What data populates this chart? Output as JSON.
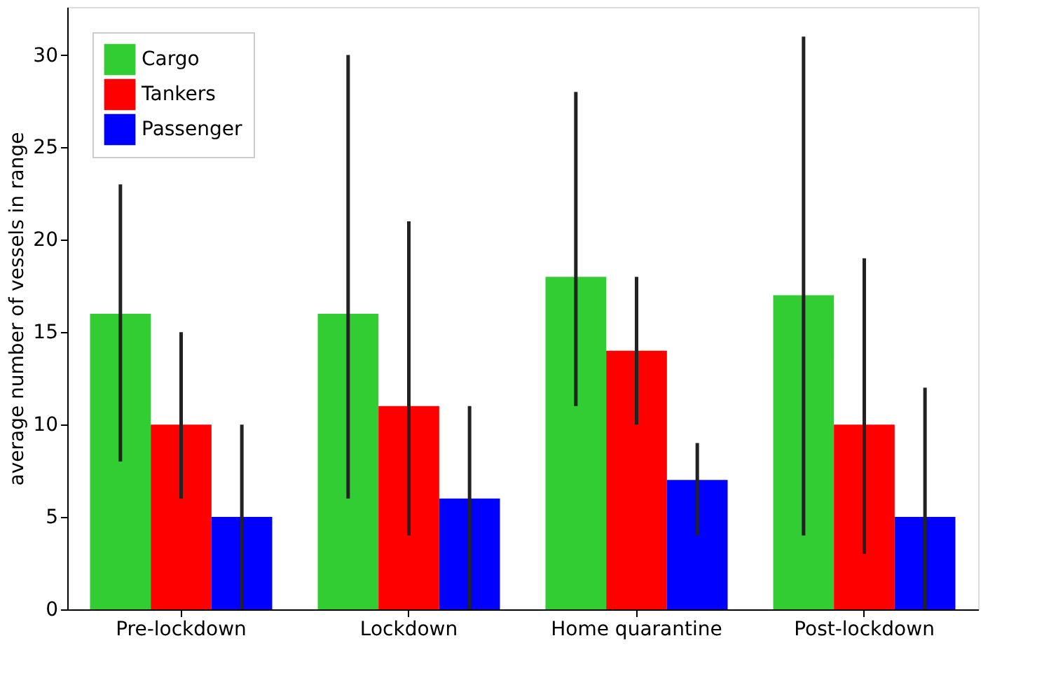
{
  "chart_data": {
    "type": "bar",
    "ylabel": "average number of vessels in range",
    "categories": [
      "Pre-lockdown",
      "Lockdown",
      "Home quarantine",
      "Post-lockdown"
    ],
    "series": [
      {
        "name": "Cargo",
        "color": "#32cd32",
        "values": [
          16,
          16,
          18,
          17
        ],
        "errors": [
          [
            8,
            23
          ],
          [
            6,
            30
          ],
          [
            11,
            28
          ],
          [
            4,
            31
          ]
        ]
      },
      {
        "name": "Tankers",
        "color": "#ff0000",
        "values": [
          10,
          11,
          14,
          10
        ],
        "errors": [
          [
            6,
            15
          ],
          [
            4,
            21
          ],
          [
            10,
            18
          ],
          [
            3,
            19
          ]
        ]
      },
      {
        "name": "Passenger",
        "color": "#0000ff",
        "values": [
          5,
          6,
          7,
          5
        ],
        "errors": [
          [
            0,
            10
          ],
          [
            0,
            11
          ],
          [
            4,
            9
          ],
          [
            0,
            12
          ]
        ]
      }
    ],
    "ylim": [
      0,
      32.6
    ],
    "yticks": [
      0,
      5,
      10,
      15,
      20,
      25,
      30
    ],
    "legend": "top left",
    "grid": false
  }
}
